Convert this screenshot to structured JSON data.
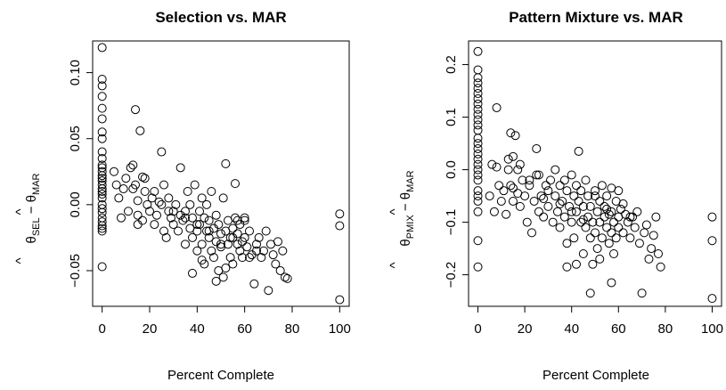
{
  "chart_data": [
    {
      "type": "scatter",
      "title": "Selection vs. MAR",
      "xlabel": "Percent Complete",
      "ylabel": {
        "theta": "θ",
        "hat": "^",
        "sub1": "SEL",
        "minus": " − ",
        "sub2": "MAR"
      },
      "xlim": [
        -4,
        104
      ],
      "ylim": [
        -0.077,
        0.124
      ],
      "xticks": [
        0,
        20,
        40,
        60,
        80,
        100
      ],
      "xtick_labels": [
        "0",
        "20",
        "40",
        "60",
        "80",
        "100"
      ],
      "yticks": [
        -0.05,
        0.0,
        0.05,
        0.1
      ],
      "ytick_labels": [
        "−0.05",
        "0.00",
        "0.05",
        "0.10"
      ],
      "grid": false,
      "x": [
        0,
        0,
        0,
        0,
        0,
        0,
        0,
        0,
        0,
        0,
        0,
        0,
        0,
        0,
        0,
        0,
        0,
        0,
        0,
        0,
        0,
        0,
        0,
        0,
        0,
        0,
        0,
        0,
        0,
        0,
        5,
        6,
        7,
        8,
        9,
        10,
        11,
        12,
        13,
        14,
        14,
        15,
        15,
        16,
        17,
        17,
        18,
        19,
        20,
        21,
        22,
        23,
        24,
        25,
        26,
        26,
        27,
        28,
        29,
        30,
        31,
        32,
        33,
        33,
        34,
        35,
        35,
        36,
        37,
        37,
        38,
        38,
        39,
        40,
        40,
        41,
        41,
        42,
        42,
        43,
        43,
        44,
        44,
        45,
        45,
        46,
        46,
        47,
        47,
        48,
        48,
        49,
        49,
        50,
        50,
        51,
        51,
        52,
        52,
        53,
        53,
        54,
        54,
        55,
        55,
        56,
        56,
        57,
        57,
        58,
        58,
        59,
        59,
        60,
        60,
        61,
        62,
        63,
        64,
        65,
        66,
        67,
        68,
        69,
        70,
        71,
        72,
        73,
        74,
        75,
        76,
        77,
        78,
        30,
        35,
        40,
        45,
        50,
        55,
        60,
        65,
        25,
        28,
        22,
        18,
        15,
        13,
        38,
        42,
        48,
        52,
        57,
        62,
        100,
        100,
        100
      ],
      "y": [
        0.119,
        0.095,
        0.09,
        0.082,
        0.073,
        0.065,
        0.055,
        0.05,
        0.04,
        0.035,
        0.03,
        0.028,
        0.025,
        0.02,
        0.015,
        0.01,
        0.005,
        0.0,
        -0.003,
        -0.006,
        -0.01,
        -0.013,
        -0.016,
        -0.018,
        -0.02,
        0.012,
        0.018,
        0.022,
        -0.047,
        0.008,
        0.025,
        0.015,
        0.005,
        -0.01,
        0.012,
        0.02,
        -0.005,
        0.028,
        0.03,
        0.072,
        0.015,
        -0.008,
        0.003,
        0.056,
        0.021,
        -0.012,
        0.01,
        0.0,
        -0.005,
        0.005,
        -0.015,
        -0.008,
        0.002,
        0.04,
        -0.02,
        0.015,
        -0.025,
        0.005,
        -0.01,
        -0.015,
        0.0,
        -0.02,
        -0.008,
        0.028,
        -0.012,
        -0.005,
        -0.03,
        0.01,
        -0.018,
        0.0,
        -0.025,
        -0.01,
        0.015,
        -0.02,
        -0.035,
        -0.005,
        -0.015,
        0.005,
        -0.03,
        -0.01,
        -0.045,
        -0.02,
        0.0,
        -0.025,
        -0.012,
        -0.035,
        0.01,
        -0.018,
        -0.04,
        -0.008,
        -0.028,
        -0.015,
        -0.05,
        -0.022,
        -0.032,
        0.005,
        -0.055,
        -0.02,
        0.031,
        -0.03,
        -0.012,
        -0.04,
        -0.025,
        -0.018,
        -0.045,
        -0.01,
        0.016,
        -0.03,
        -0.022,
        -0.035,
        -0.015,
        -0.028,
        -0.04,
        -0.025,
        -0.01,
        -0.032,
        -0.02,
        -0.038,
        -0.06,
        -0.03,
        -0.025,
        -0.04,
        -0.035,
        -0.02,
        -0.065,
        -0.03,
        -0.038,
        -0.045,
        -0.028,
        -0.05,
        -0.035,
        -0.055,
        -0.056,
        -0.005,
        -0.01,
        -0.015,
        -0.02,
        -0.03,
        -0.025,
        -0.012,
        -0.035,
        0.0,
        -0.005,
        0.01,
        0.02,
        -0.015,
        0.012,
        -0.052,
        -0.042,
        -0.058,
        -0.048,
        -0.012,
        -0.04,
        -0.007,
        -0.016,
        -0.072
      ]
    },
    {
      "type": "scatter",
      "title": "Pattern Mixture vs. MAR",
      "xlabel": "Percent Complete",
      "ylabel": {
        "theta": "θ",
        "hat": "^",
        "sub1": "PMIX",
        "minus": " − ",
        "sub2": "MAR"
      },
      "xlim": [
        -4,
        104
      ],
      "ylim": [
        -0.26,
        0.245
      ],
      "xticks": [
        0,
        20,
        40,
        60,
        80,
        100
      ],
      "xtick_labels": [
        "0",
        "20",
        "40",
        "60",
        "80",
        "100"
      ],
      "yticks": [
        -0.2,
        -0.1,
        0.0,
        0.1,
        0.2
      ],
      "ytick_labels": [
        "−0.2",
        "−0.1",
        "0.0",
        "0.1",
        "0.2"
      ],
      "grid": false,
      "x": [
        0,
        0,
        0,
        0,
        0,
        0,
        0,
        0,
        0,
        0,
        0,
        0,
        0,
        0,
        0,
        0,
        0,
        0,
        0,
        0,
        0,
        0,
        0,
        0,
        0,
        0,
        0,
        0,
        5,
        6,
        7,
        8,
        9,
        10,
        11,
        12,
        13,
        14,
        14,
        15,
        15,
        16,
        17,
        17,
        18,
        19,
        20,
        21,
        22,
        23,
        24,
        25,
        26,
        26,
        27,
        28,
        29,
        30,
        31,
        32,
        33,
        33,
        34,
        35,
        35,
        36,
        37,
        37,
        38,
        38,
        39,
        40,
        40,
        41,
        41,
        42,
        42,
        43,
        43,
        44,
        44,
        45,
        45,
        46,
        46,
        47,
        47,
        48,
        48,
        49,
        49,
        50,
        50,
        51,
        51,
        52,
        52,
        53,
        53,
        54,
        54,
        55,
        55,
        56,
        56,
        57,
        57,
        58,
        58,
        59,
        59,
        60,
        60,
        61,
        62,
        63,
        64,
        65,
        66,
        67,
        68,
        69,
        70,
        71,
        72,
        73,
        74,
        75,
        76,
        77,
        78,
        30,
        35,
        40,
        45,
        50,
        55,
        60,
        65,
        25,
        28,
        22,
        18,
        15,
        13,
        38,
        42,
        48,
        52,
        57,
        62,
        8,
        57,
        100,
        100,
        100
      ],
      "y": [
        0.225,
        0.19,
        0.175,
        0.165,
        0.155,
        0.145,
        0.135,
        0.125,
        0.115,
        0.105,
        0.095,
        0.085,
        0.075,
        0.06,
        0.05,
        0.04,
        0.02,
        0.01,
        0.0,
        -0.01,
        -0.02,
        -0.04,
        -0.05,
        -0.06,
        -0.08,
        -0.135,
        -0.185,
        0.03,
        -0.05,
        0.01,
        -0.08,
        0.005,
        -0.03,
        -0.06,
        -0.04,
        -0.085,
        0.02,
        0.07,
        -0.03,
        -0.06,
        0.025,
        0.065,
        -0.045,
        0.0,
        -0.07,
        -0.02,
        -0.05,
        -0.1,
        -0.03,
        -0.12,
        -0.06,
        0.04,
        -0.08,
        -0.01,
        -0.05,
        -0.09,
        -0.03,
        -0.07,
        -0.02,
        -0.1,
        -0.05,
        0.0,
        -0.08,
        -0.03,
        -0.11,
        -0.06,
        -0.02,
        -0.09,
        -0.04,
        -0.14,
        -0.07,
        -0.01,
        -0.1,
        -0.05,
        -0.13,
        -0.03,
        -0.08,
        0.035,
        -0.06,
        -0.1,
        -0.04,
        -0.16,
        -0.07,
        -0.11,
        -0.02,
        -0.09,
        -0.05,
        -0.13,
        -0.07,
        -0.1,
        -0.18,
        -0.04,
        -0.12,
        -0.08,
        -0.15,
        -0.06,
        -0.1,
        -0.03,
        -0.13,
        -0.09,
        -0.07,
        -0.11,
        -0.05,
        -0.14,
        -0.085,
        -0.12,
        -0.08,
        -0.16,
        -0.1,
        -0.06,
        -0.13,
        -0.09,
        -0.11,
        -0.075,
        -0.12,
        -0.085,
        -0.1,
        -0.13,
        -0.09,
        -0.11,
        -0.08,
        -0.14,
        -0.235,
        -0.12,
        -0.105,
        -0.17,
        -0.15,
        -0.125,
        -0.09,
        -0.16,
        -0.185,
        -0.04,
        -0.065,
        -0.08,
        -0.095,
        -0.05,
        -0.075,
        -0.04,
        -0.09,
        -0.01,
        -0.055,
        -0.02,
        0.01,
        -0.035,
        0.0,
        -0.185,
        -0.18,
        -0.235,
        -0.17,
        -0.215,
        -0.065,
        0.118,
        -0.035,
        -0.09,
        -0.135,
        -0.245
      ]
    }
  ]
}
